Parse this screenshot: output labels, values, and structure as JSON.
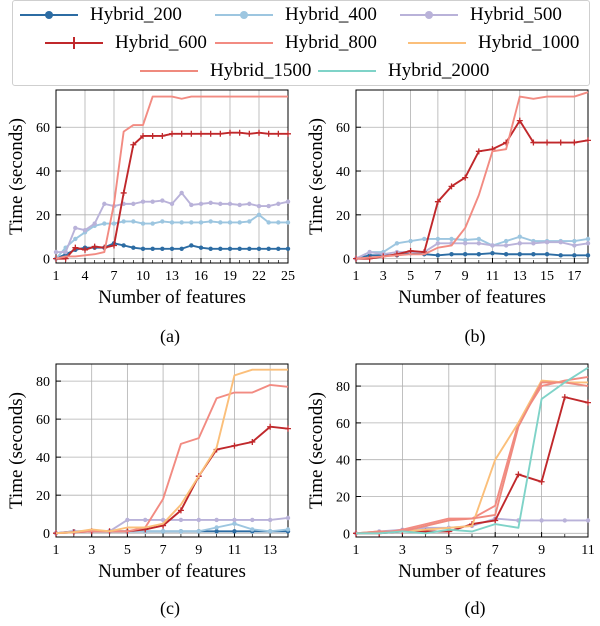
{
  "legend": {
    "entries": [
      {
        "name": "Hybrid_200",
        "color": "#2c6ca3",
        "marker": "dot"
      },
      {
        "name": "Hybrid_400",
        "color": "#9dc6e0",
        "marker": "dot"
      },
      {
        "name": "Hybrid_500",
        "color": "#b9b2d9",
        "marker": "dot"
      },
      {
        "name": "Hybrid_600",
        "color": "#c0282b",
        "marker": "plus"
      },
      {
        "name": "Hybrid_800",
        "color": "#f28b82",
        "marker": "none"
      },
      {
        "name": "Hybrid_1000",
        "color": "#fbbf7a",
        "marker": "none"
      },
      {
        "name": "Hybrid_1500",
        "color": "#ef8a7e",
        "marker": "none"
      },
      {
        "name": "Hybrid_2000",
        "color": "#7fd3c8",
        "marker": "none"
      }
    ]
  },
  "captions": [
    "(a)",
    "(b)",
    "(c)",
    "(d)"
  ],
  "chart_data": [
    {
      "type": "line",
      "xlabel": "Number of features",
      "ylabel": "Time (seconds)",
      "xlim": [
        1,
        25
      ],
      "ylim": [
        -2,
        77
      ],
      "xticks": [
        1,
        4,
        7,
        10,
        13,
        16,
        19,
        22,
        25
      ],
      "yticks": [
        0,
        20,
        40,
        60
      ],
      "grid": true,
      "x": [
        1,
        2,
        3,
        4,
        5,
        6,
        7,
        8,
        9,
        10,
        11,
        12,
        13,
        14,
        15,
        16,
        17,
        18,
        19,
        20,
        21,
        22,
        23,
        24,
        25
      ],
      "series": [
        {
          "name": "Hybrid_200",
          "values": [
            0,
            2,
            4,
            5,
            5,
            5,
            7,
            6,
            5,
            4.5,
            4.5,
            4.5,
            4.5,
            4.5,
            6,
            5,
            4.5,
            4.5,
            4.5,
            4.5,
            4.5,
            4.5,
            4.5,
            4.5,
            4.5
          ]
        },
        {
          "name": "Hybrid_400",
          "values": [
            0,
            5,
            9,
            12,
            15,
            16,
            16,
            17,
            17,
            16,
            16,
            17,
            16.5,
            16.5,
            16.5,
            16.5,
            17,
            16.5,
            16.5,
            16.5,
            17,
            20,
            16.5,
            16.5,
            16.5
          ]
        },
        {
          "name": "Hybrid_500",
          "values": [
            3,
            3,
            14,
            13,
            16,
            25,
            24,
            25,
            25,
            26,
            26,
            26.5,
            25,
            30,
            24.5,
            25,
            25.5,
            25,
            25,
            24.5,
            25,
            24,
            24,
            25,
            26
          ]
        },
        {
          "name": "Hybrid_600",
          "values": [
            0,
            0,
            5,
            4,
            5.5,
            5,
            6,
            30,
            52,
            56,
            56,
            56,
            57,
            57,
            57,
            57,
            57,
            57,
            57.5,
            57.5,
            57,
            57.5,
            57,
            57,
            57
          ]
        },
        {
          "name": "Hybrid_800",
          "values": [
            0,
            1,
            1,
            1.5,
            2,
            3,
            25,
            58,
            61,
            61,
            74,
            74,
            74,
            73,
            74,
            74,
            74,
            74,
            74,
            74,
            74,
            74,
            74,
            74,
            74
          ]
        }
      ]
    },
    {
      "type": "line",
      "xlabel": "Number of features",
      "ylabel": "Time (seconds)",
      "xlim": [
        1,
        18
      ],
      "ylim": [
        -2,
        77
      ],
      "xticks": [
        1,
        3,
        5,
        7,
        9,
        11,
        13,
        15,
        17
      ],
      "yticks": [
        0,
        20,
        40,
        60
      ],
      "grid": true,
      "x": [
        1,
        2,
        3,
        4,
        5,
        6,
        7,
        8,
        9,
        10,
        11,
        12,
        13,
        14,
        15,
        16,
        17,
        18
      ],
      "series": [
        {
          "name": "Hybrid_200",
          "values": [
            0,
            1.5,
            1.5,
            1.5,
            2.5,
            2,
            1.5,
            2,
            2,
            2,
            2.5,
            2,
            2,
            2,
            2,
            1.5,
            1.5,
            1.5
          ]
        },
        {
          "name": "Hybrid_400",
          "values": [
            0,
            3,
            3,
            7,
            8,
            9,
            9,
            9,
            8.5,
            9,
            6,
            8,
            10,
            8,
            8,
            8,
            8,
            9
          ]
        },
        {
          "name": "Hybrid_500",
          "values": [
            0,
            3,
            2,
            3,
            3,
            3,
            7,
            7,
            7,
            7,
            6,
            6,
            7,
            7,
            7.5,
            7.5,
            6,
            7
          ]
        },
        {
          "name": "Hybrid_600",
          "values": [
            0,
            0,
            1,
            2,
            3.5,
            3,
            26,
            33,
            37,
            49,
            50,
            53,
            63,
            53,
            53,
            53,
            53,
            54
          ]
        },
        {
          "name": "Hybrid_800",
          "values": [
            0,
            0.5,
            1,
            1.5,
            2,
            2,
            5,
            6,
            14,
            29,
            49,
            50,
            74,
            73,
            74,
            74,
            74,
            76
          ]
        }
      ]
    },
    {
      "type": "line",
      "xlabel": "Number of features",
      "ylabel": "Time (seconds)",
      "xlim": [
        1,
        14
      ],
      "ylim": [
        -2,
        89
      ],
      "xticks": [
        1,
        3,
        5,
        7,
        9,
        11,
        13
      ],
      "yticks": [
        0,
        20,
        40,
        60,
        80
      ],
      "grid": true,
      "x": [
        1,
        2,
        3,
        4,
        5,
        6,
        7,
        8,
        9,
        10,
        11,
        12,
        13,
        14
      ],
      "series": [
        {
          "name": "Hybrid_200",
          "values": [
            0,
            1,
            1,
            1,
            1,
            1,
            1,
            1,
            1,
            1,
            1,
            1,
            1,
            1
          ]
        },
        {
          "name": "Hybrid_400",
          "values": [
            0,
            0.5,
            1,
            1,
            1,
            1,
            1,
            1,
            1,
            3,
            5,
            2,
            1,
            2
          ]
        },
        {
          "name": "Hybrid_500",
          "values": [
            0,
            1,
            1,
            1,
            7,
            7,
            7,
            7,
            7,
            7,
            7,
            7,
            7,
            8
          ]
        },
        {
          "name": "Hybrid_600",
          "values": [
            0,
            0.5,
            1,
            1,
            1,
            2,
            4,
            12,
            30,
            44,
            46,
            48,
            56,
            55
          ]
        },
        {
          "name": "Hybrid_800",
          "values": [
            0,
            0.5,
            1,
            1,
            1,
            3,
            18,
            47,
            50,
            71,
            74,
            74,
            78,
            77
          ]
        },
        {
          "name": "Hybrid_1000",
          "values": [
            0,
            0.5,
            2,
            1,
            3,
            3,
            5,
            15,
            30,
            45,
            83,
            86,
            86,
            86
          ]
        }
      ]
    },
    {
      "type": "line",
      "xlabel": "Number of features",
      "ylabel": "Time (seconds)",
      "xlim": [
        1,
        11
      ],
      "ylim": [
        -2,
        92
      ],
      "xticks": [
        1,
        3,
        5,
        7,
        9,
        11
      ],
      "yticks": [
        0,
        20,
        40,
        60,
        80
      ],
      "grid": true,
      "x": [
        1,
        2,
        3,
        4,
        5,
        6,
        7,
        8,
        9,
        10,
        11
      ],
      "series": [
        {
          "name": "Hybrid_500",
          "values": [
            0,
            1,
            2,
            3,
            3,
            4,
            8,
            7,
            7,
            7,
            7
          ]
        },
        {
          "name": "Hybrid_600",
          "values": [
            0,
            0,
            1,
            1,
            1,
            5,
            7,
            32,
            28,
            74,
            71
          ]
        },
        {
          "name": "Hybrid_800",
          "values": [
            0,
            0,
            2,
            5,
            8,
            8,
            15,
            60,
            80,
            83,
            85
          ]
        },
        {
          "name": "Hybrid_1000",
          "values": [
            0,
            1,
            1,
            2,
            3,
            4,
            40,
            60,
            83,
            82,
            82
          ]
        },
        {
          "name": "Hybrid_1500",
          "values": [
            0,
            1,
            1,
            4,
            7,
            8,
            10,
            58,
            82,
            82,
            80
          ]
        },
        {
          "name": "Hybrid_2000",
          "values": [
            0,
            0,
            1,
            0,
            2,
            1,
            5,
            3,
            73,
            82,
            90
          ]
        }
      ]
    }
  ]
}
